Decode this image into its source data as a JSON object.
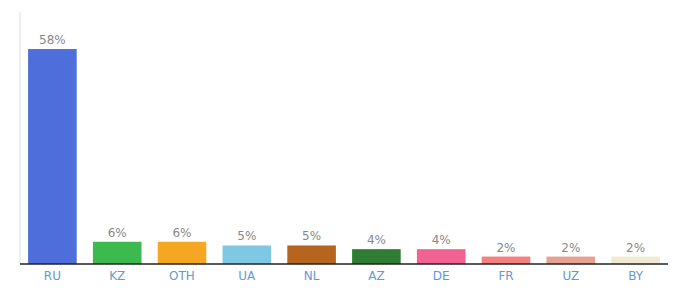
{
  "chart_data": {
    "type": "bar",
    "categories": [
      "RU",
      "KZ",
      "OTH",
      "UA",
      "NL",
      "AZ",
      "DE",
      "FR",
      "UZ",
      "BY"
    ],
    "values": [
      58,
      6,
      6,
      5,
      5,
      4,
      4,
      2,
      2,
      2
    ],
    "value_labels": [
      "58%",
      "6%",
      "6%",
      "5%",
      "5%",
      "4%",
      "4%",
      "2%",
      "2%",
      "2%"
    ],
    "colors": [
      "#4d6edb",
      "#3dba4e",
      "#f5a623",
      "#7ec8e3",
      "#b5651d",
      "#2e7d32",
      "#f06292",
      "#f48080",
      "#e8a090",
      "#f0ead2"
    ],
    "ylim": [
      0,
      68
    ],
    "data_labels": true,
    "tick_labels": "x"
  }
}
